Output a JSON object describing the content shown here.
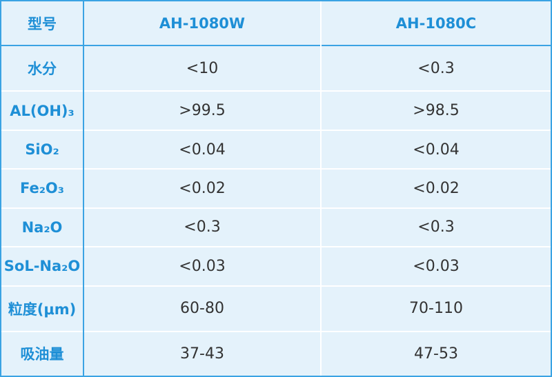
{
  "table": {
    "header": [
      "型号",
      "AH-1080W",
      "AH-1080C"
    ],
    "rows": [
      [
        "水分",
        "<10",
        "<0.3"
      ],
      [
        "AL(OH)₃",
        ">99.5",
        ">98.5"
      ],
      [
        "SiO₂",
        "<0.04",
        "<0.04"
      ],
      [
        "Fe₂O₃",
        "<0.02",
        "<0.02"
      ],
      [
        "Na₂O",
        "<0.3",
        "<0.3"
      ],
      [
        "SoL-Na₂O",
        "<0.03",
        "<0.03"
      ],
      [
        "粒度(μm)",
        "60-80",
        "70-110"
      ],
      [
        "吸油量",
        "37-43",
        "47-53"
      ]
    ]
  }
}
